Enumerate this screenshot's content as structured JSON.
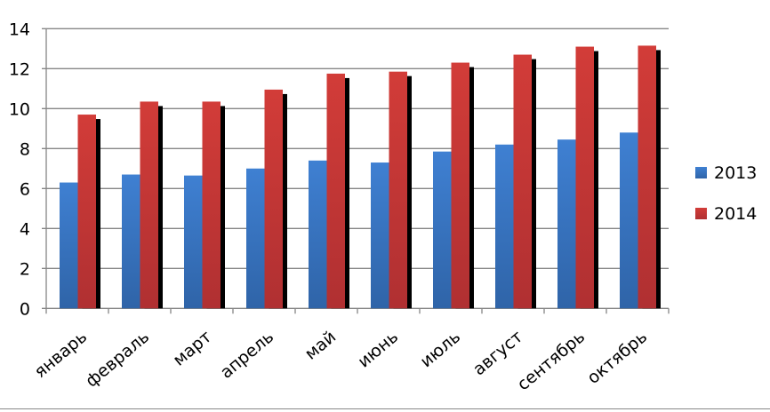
{
  "chart_data": {
    "type": "bar",
    "categories": [
      "январь",
      "февраль",
      "март",
      "апрель",
      "май",
      "июнь",
      "июль",
      "август",
      "сентябрь",
      "октябрь"
    ],
    "series": [
      {
        "name": "2013",
        "values": [
          6.3,
          6.7,
          6.65,
          7.0,
          7.4,
          7.3,
          7.85,
          8.2,
          8.45,
          8.8
        ],
        "color": "#3a78c8"
      },
      {
        "name": "2014",
        "values": [
          9.7,
          10.35,
          10.35,
          10.95,
          11.75,
          11.85,
          12.3,
          12.7,
          13.1,
          13.15
        ],
        "color": "#c8383a"
      }
    ],
    "ylim": [
      0,
      14
    ],
    "yticks": [
      "0",
      "2",
      "4",
      "6",
      "8",
      "10",
      "12",
      "14"
    ],
    "grid": true,
    "legend": "right"
  }
}
